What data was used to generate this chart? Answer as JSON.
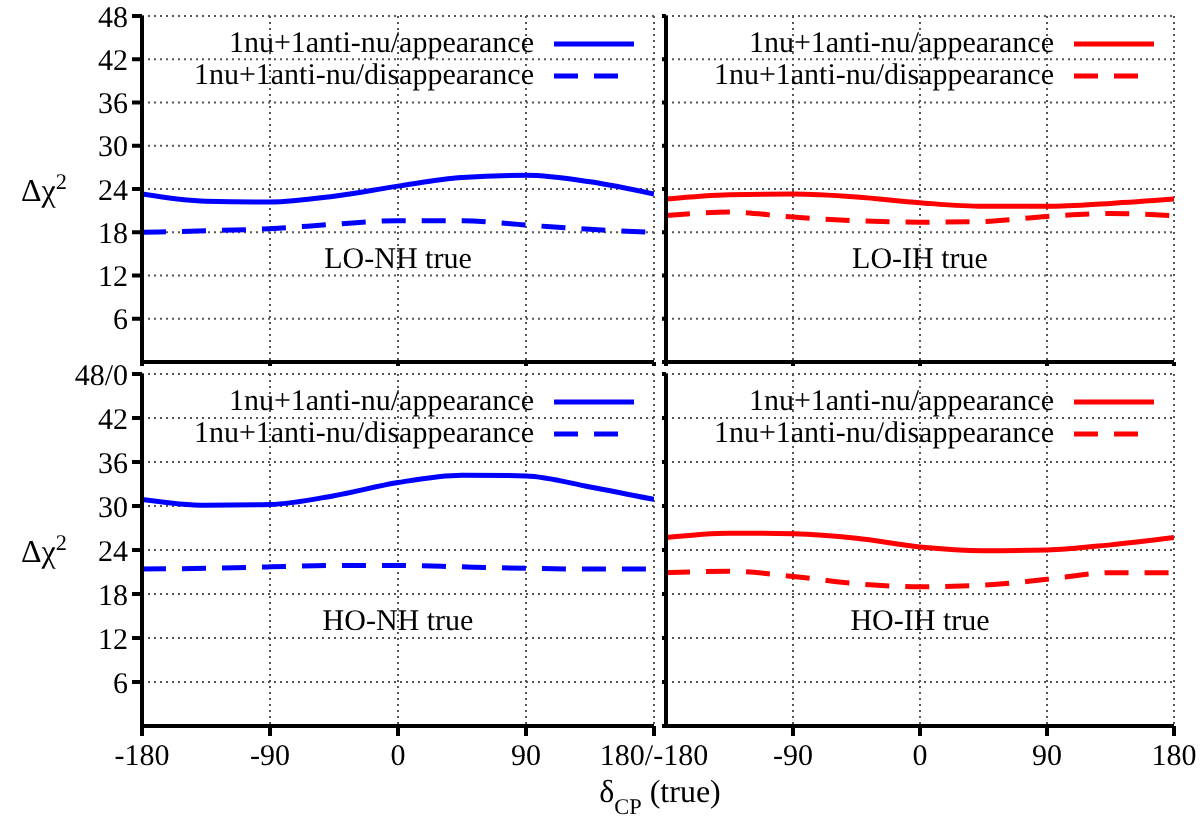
{
  "chart_data": [
    {
      "type": "line",
      "ylabel": "Δχ$^{2}$",
      "x": [
        -180,
        -135,
        -90,
        -45,
        0,
        45,
        90,
        135,
        180
      ],
      "xlim": [
        -180,
        180
      ],
      "xticks": [
        -180,
        -90,
        0,
        90,
        180
      ],
      "ylim": [
        0,
        48
      ],
      "yticks": [
        6,
        12,
        18,
        24,
        30,
        36,
        42,
        48
      ],
      "tick_labels": "y",
      "grid": true,
      "legend": "top right",
      "annotations": [
        "LO-NH true"
      ],
      "series": [
        {
          "name": "1nu+1anti-nu/appearance",
          "color": "#0000ff",
          "line_style": "solid",
          "values": [
            23.3,
            22.3,
            22.2,
            23.0,
            24.4,
            25.6,
            25.9,
            25.0,
            23.3
          ]
        },
        {
          "name": "1nu+1anti-nu/disappearance",
          "color": "#0000ff",
          "line_style": "dashed",
          "values": [
            18.0,
            18.2,
            18.5,
            19.1,
            19.6,
            19.6,
            19.0,
            18.4,
            18.0
          ]
        }
      ]
    },
    {
      "type": "line",
      "x": [
        -180,
        -135,
        -90,
        -45,
        0,
        45,
        90,
        135,
        180
      ],
      "xlim": [
        -180,
        180
      ],
      "xticks": [
        -180,
        -90,
        0,
        90,
        180
      ],
      "ylim": [
        0,
        48
      ],
      "yticks": [
        0,
        6,
        12,
        18,
        24,
        30,
        36,
        42,
        48
      ],
      "tick_labels": false,
      "grid": true,
      "legend": "top right",
      "annotations": [
        "LO-IH true"
      ],
      "series": [
        {
          "name": "1nu+1anti-nu/appearance",
          "color": "#ff0000",
          "line_style": "solid",
          "values": [
            22.6,
            23.2,
            23.3,
            22.9,
            22.1,
            21.6,
            21.6,
            22.0,
            22.6
          ]
        },
        {
          "name": "1nu+1anti-nu/disappearance",
          "color": "#ff0000",
          "line_style": "dashed",
          "values": [
            20.3,
            20.8,
            20.1,
            19.6,
            19.4,
            19.5,
            20.2,
            20.6,
            20.3
          ]
        }
      ]
    },
    {
      "type": "line",
      "ylabel": "Δχ$^{2}$",
      "xlabel": "δ$_{CP}$ (true)",
      "x": [
        -180,
        -135,
        -90,
        -45,
        0,
        45,
        90,
        135,
        180
      ],
      "xlim": [
        -180,
        180
      ],
      "xticks": [
        -180,
        -90,
        0,
        90,
        {
          "value": 180,
          "label": "180/-180"
        }
      ],
      "ylim": [
        0,
        48
      ],
      "yticks": [
        6,
        12,
        18,
        24,
        30,
        36,
        42,
        {
          "value": 48,
          "label": "48/0"
        }
      ],
      "grid": true,
      "legend": "top right",
      "annotations": [
        "HO-NH true"
      ],
      "series": [
        {
          "name": "1nu+1anti-nu/appearance",
          "color": "#0000ff",
          "line_style": "solid",
          "values": [
            30.9,
            30.1,
            30.2,
            31.4,
            33.2,
            34.2,
            34.1,
            32.6,
            30.9
          ]
        },
        {
          "name": "1nu+1anti-nu/disappearance",
          "color": "#0000ff",
          "line_style": "dashed",
          "values": [
            21.4,
            21.5,
            21.7,
            21.9,
            21.9,
            21.7,
            21.5,
            21.4,
            21.4
          ]
        }
      ]
    },
    {
      "type": "line",
      "x": [
        -180,
        -135,
        -90,
        -45,
        0,
        45,
        90,
        135,
        180
      ],
      "xlim": [
        -180,
        180
      ],
      "xticks": [
        -90,
        0,
        90,
        180
      ],
      "ylim": [
        0,
        48
      ],
      "yticks": [
        0,
        6,
        12,
        18,
        24,
        30,
        36,
        42,
        48
      ],
      "tick_labels": "x",
      "grid": true,
      "legend": "top right",
      "annotations": [
        "HO-IH true"
      ],
      "series": [
        {
          "name": "1nu+1anti-nu/appearance",
          "color": "#ff0000",
          "line_style": "solid",
          "values": [
            25.7,
            26.3,
            26.2,
            25.6,
            24.4,
            23.9,
            24.0,
            24.7,
            25.7
          ]
        },
        {
          "name": "1nu+1anti-nu/disappearance",
          "color": "#ff0000",
          "line_style": "dashed",
          "values": [
            20.9,
            21.1,
            20.4,
            19.4,
            19.0,
            19.2,
            20.0,
            20.9,
            20.9
          ]
        }
      ]
    }
  ]
}
